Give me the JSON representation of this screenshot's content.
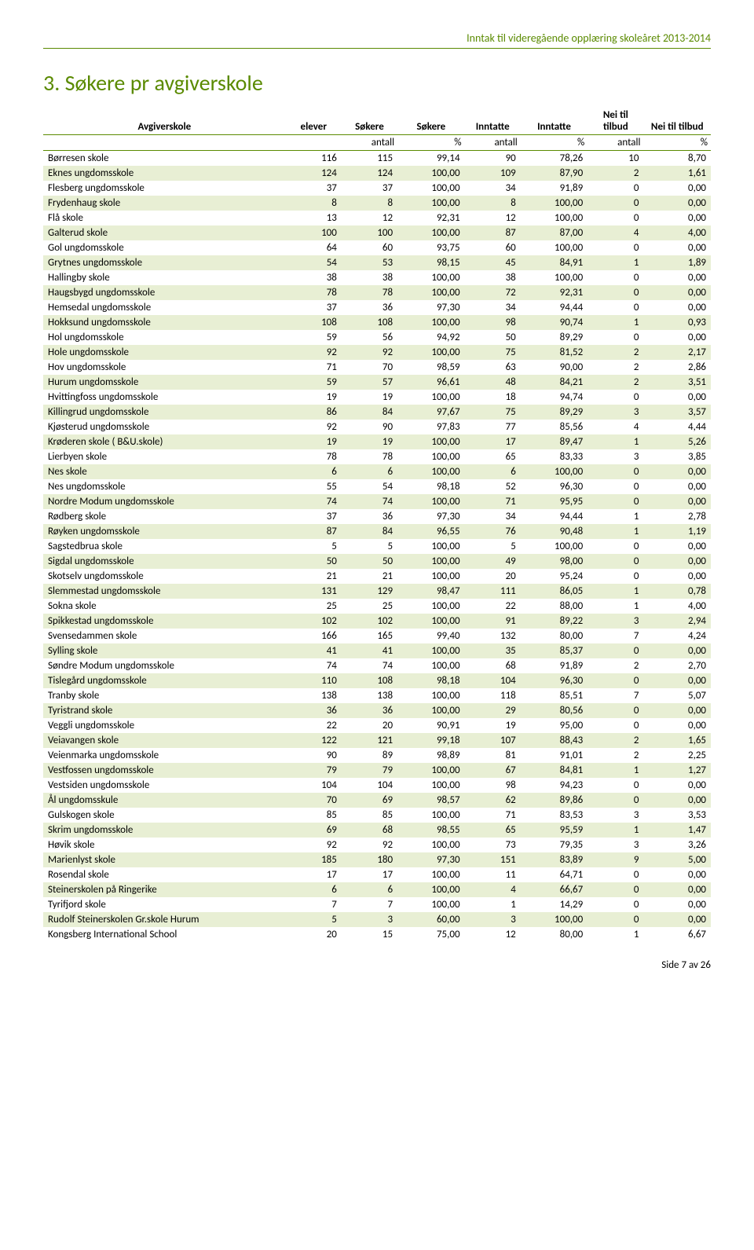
{
  "header": "Inntak til videregående opplæring skoleåret 2013-2014",
  "title": "3. Søkere pr avgiverskole",
  "footer": "Side 7 av 26",
  "colors": {
    "accent": "#5a8a00",
    "alt_row": "#e8efd4",
    "bg": "#ffffff"
  },
  "table": {
    "head1": [
      "Avgiverskole",
      "elever",
      "Søkere",
      "Søkere",
      "Inntatte",
      "Inntatte",
      "Nei til tilbud",
      "Nei til tilbud"
    ],
    "head2": [
      "",
      "",
      "antall",
      "%",
      "antall",
      "%",
      "antall",
      "%"
    ],
    "rows": [
      [
        "Børresen skole",
        "116",
        "115",
        "99,14",
        "90",
        "78,26",
        "10",
        "8,70"
      ],
      [
        "Eknes ungdomsskole",
        "124",
        "124",
        "100,00",
        "109",
        "87,90",
        "2",
        "1,61"
      ],
      [
        "Flesberg ungdomsskole",
        "37",
        "37",
        "100,00",
        "34",
        "91,89",
        "0",
        "0,00"
      ],
      [
        "Frydenhaug skole",
        "8",
        "8",
        "100,00",
        "8",
        "100,00",
        "0",
        "0,00"
      ],
      [
        "Flå skole",
        "13",
        "12",
        "92,31",
        "12",
        "100,00",
        "0",
        "0,00"
      ],
      [
        "Galterud skole",
        "100",
        "100",
        "100,00",
        "87",
        "87,00",
        "4",
        "4,00"
      ],
      [
        "Gol ungdomsskole",
        "64",
        "60",
        "93,75",
        "60",
        "100,00",
        "0",
        "0,00"
      ],
      [
        "Grytnes ungdomsskole",
        "54",
        "53",
        "98,15",
        "45",
        "84,91",
        "1",
        "1,89"
      ],
      [
        "Hallingby skole",
        "38",
        "38",
        "100,00",
        "38",
        "100,00",
        "0",
        "0,00"
      ],
      [
        "Haugsbygd ungdomsskole",
        "78",
        "78",
        "100,00",
        "72",
        "92,31",
        "0",
        "0,00"
      ],
      [
        "Hemsedal ungdomsskole",
        "37",
        "36",
        "97,30",
        "34",
        "94,44",
        "0",
        "0,00"
      ],
      [
        "Hokksund ungdomsskole",
        "108",
        "108",
        "100,00",
        "98",
        "90,74",
        "1",
        "0,93"
      ],
      [
        "Hol ungdomsskole",
        "59",
        "56",
        "94,92",
        "50",
        "89,29",
        "0",
        "0,00"
      ],
      [
        "Hole ungdomsskole",
        "92",
        "92",
        "100,00",
        "75",
        "81,52",
        "2",
        "2,17"
      ],
      [
        "Hov ungdomsskole",
        "71",
        "70",
        "98,59",
        "63",
        "90,00",
        "2",
        "2,86"
      ],
      [
        "Hurum ungdomsskole",
        "59",
        "57",
        "96,61",
        "48",
        "84,21",
        "2",
        "3,51"
      ],
      [
        "Hvittingfoss ungdomsskole",
        "19",
        "19",
        "100,00",
        "18",
        "94,74",
        "0",
        "0,00"
      ],
      [
        "Killingrud ungdomsskole",
        "86",
        "84",
        "97,67",
        "75",
        "89,29",
        "3",
        "3,57"
      ],
      [
        "Kjøsterud ungdomsskole",
        "92",
        "90",
        "97,83",
        "77",
        "85,56",
        "4",
        "4,44"
      ],
      [
        "Krøderen skole ( B&U.skole)",
        "19",
        "19",
        "100,00",
        "17",
        "89,47",
        "1",
        "5,26"
      ],
      [
        "Lierbyen skole",
        "78",
        "78",
        "100,00",
        "65",
        "83,33",
        "3",
        "3,85"
      ],
      [
        "Nes skole",
        "6",
        "6",
        "100,00",
        "6",
        "100,00",
        "0",
        "0,00"
      ],
      [
        "Nes ungdomsskole",
        "55",
        "54",
        "98,18",
        "52",
        "96,30",
        "0",
        "0,00"
      ],
      [
        "Nordre Modum ungdomsskole",
        "74",
        "74",
        "100,00",
        "71",
        "95,95",
        "0",
        "0,00"
      ],
      [
        "Rødberg skole",
        "37",
        "36",
        "97,30",
        "34",
        "94,44",
        "1",
        "2,78"
      ],
      [
        "Røyken ungdomsskole",
        "87",
        "84",
        "96,55",
        "76",
        "90,48",
        "1",
        "1,19"
      ],
      [
        "Sagstedbrua skole",
        "5",
        "5",
        "100,00",
        "5",
        "100,00",
        "0",
        "0,00"
      ],
      [
        "Sigdal ungdomsskole",
        "50",
        "50",
        "100,00",
        "49",
        "98,00",
        "0",
        "0,00"
      ],
      [
        "Skotselv ungdomsskole",
        "21",
        "21",
        "100,00",
        "20",
        "95,24",
        "0",
        "0,00"
      ],
      [
        "Slemmestad ungdomsskole",
        "131",
        "129",
        "98,47",
        "111",
        "86,05",
        "1",
        "0,78"
      ],
      [
        "Sokna skole",
        "25",
        "25",
        "100,00",
        "22",
        "88,00",
        "1",
        "4,00"
      ],
      [
        "Spikkestad ungdomsskole",
        "102",
        "102",
        "100,00",
        "91",
        "89,22",
        "3",
        "2,94"
      ],
      [
        "Svensedammen skole",
        "166",
        "165",
        "99,40",
        "132",
        "80,00",
        "7",
        "4,24"
      ],
      [
        "Sylling skole",
        "41",
        "41",
        "100,00",
        "35",
        "85,37",
        "0",
        "0,00"
      ],
      [
        "Søndre Modum ungdomsskole",
        "74",
        "74",
        "100,00",
        "68",
        "91,89",
        "2",
        "2,70"
      ],
      [
        "Tislegård ungdomsskole",
        "110",
        "108",
        "98,18",
        "104",
        "96,30",
        "0",
        "0,00"
      ],
      [
        "Tranby skole",
        "138",
        "138",
        "100,00",
        "118",
        "85,51",
        "7",
        "5,07"
      ],
      [
        "Tyristrand skole",
        "36",
        "36",
        "100,00",
        "29",
        "80,56",
        "0",
        "0,00"
      ],
      [
        "Veggli ungdomsskole",
        "22",
        "20",
        "90,91",
        "19",
        "95,00",
        "0",
        "0,00"
      ],
      [
        "Veiavangen skole",
        "122",
        "121",
        "99,18",
        "107",
        "88,43",
        "2",
        "1,65"
      ],
      [
        "Veienmarka ungdomsskole",
        "90",
        "89",
        "98,89",
        "81",
        "91,01",
        "2",
        "2,25"
      ],
      [
        "Vestfossen ungdomsskole",
        "79",
        "79",
        "100,00",
        "67",
        "84,81",
        "1",
        "1,27"
      ],
      [
        "Vestsiden ungdomsskole",
        "104",
        "104",
        "100,00",
        "98",
        "94,23",
        "0",
        "0,00"
      ],
      [
        "Ål ungdomsskule",
        "70",
        "69",
        "98,57",
        "62",
        "89,86",
        "0",
        "0,00"
      ],
      [
        "Gulskogen skole",
        "85",
        "85",
        "100,00",
        "71",
        "83,53",
        "3",
        "3,53"
      ],
      [
        "Skrim ungdomsskole",
        "69",
        "68",
        "98,55",
        "65",
        "95,59",
        "1",
        "1,47"
      ],
      [
        "Høvik skole",
        "92",
        "92",
        "100,00",
        "73",
        "79,35",
        "3",
        "3,26"
      ],
      [
        "Marienlyst skole",
        "185",
        "180",
        "97,30",
        "151",
        "83,89",
        "9",
        "5,00"
      ],
      [
        "Rosendal skole",
        "17",
        "17",
        "100,00",
        "11",
        "64,71",
        "0",
        "0,00"
      ],
      [
        "Steinerskolen på Ringerike",
        "6",
        "6",
        "100,00",
        "4",
        "66,67",
        "0",
        "0,00"
      ],
      [
        "Tyrifjord skole",
        "7",
        "7",
        "100,00",
        "1",
        "14,29",
        "0",
        "0,00"
      ],
      [
        "Rudolf Steinerskolen Gr.skole Hurum",
        "5",
        "3",
        "60,00",
        "3",
        "100,00",
        "0",
        "0,00"
      ],
      [
        "Kongsberg International School",
        "20",
        "15",
        "75,00",
        "12",
        "80,00",
        "1",
        "6,67"
      ]
    ]
  }
}
